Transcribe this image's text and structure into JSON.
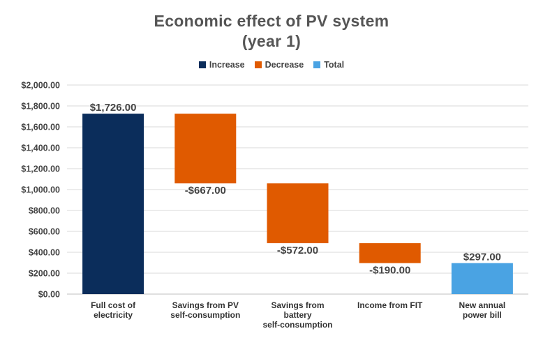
{
  "chart_data": {
    "type": "bar",
    "subtype": "waterfall",
    "title_lines": [
      "Economic effect of PV system",
      "(year 1)"
    ],
    "legend": [
      {
        "key": "increase",
        "label": "Increase",
        "color": "#0b2d5b"
      },
      {
        "key": "decrease",
        "label": "Decrease",
        "color": "#e05a00"
      },
      {
        "key": "total",
        "label": "Total",
        "color": "#4aa3e3"
      }
    ],
    "legend_position": "top",
    "ylim": [
      0,
      2000
    ],
    "y_ticks": [
      {
        "value": 0,
        "label": "$0.00"
      },
      {
        "value": 200,
        "label": "$200.00"
      },
      {
        "value": 400,
        "label": "$400.00"
      },
      {
        "value": 600,
        "label": "$600.00"
      },
      {
        "value": 800,
        "label": "$800.00"
      },
      {
        "value": 1000,
        "label": "$1,000.00"
      },
      {
        "value": 1200,
        "label": "$1,200.00"
      },
      {
        "value": 1400,
        "label": "$1,400.00"
      },
      {
        "value": 1600,
        "label": "$1,600.00"
      },
      {
        "value": 1800,
        "label": "$1,800.00"
      },
      {
        "value": 2000,
        "label": "$2,000.00"
      }
    ],
    "grid": true,
    "bars": [
      {
        "category": [
          "Full cost of",
          "electricity"
        ],
        "kind": "increase",
        "start": 0,
        "end": 1726,
        "label": "$1,726.00"
      },
      {
        "category": [
          "Savings from PV",
          "self-consumption"
        ],
        "kind": "decrease",
        "start": 1726,
        "end": 1059,
        "label": "-$667.00"
      },
      {
        "category": [
          "Savings from",
          "battery",
          "self-consumption"
        ],
        "kind": "decrease",
        "start": 1059,
        "end": 487,
        "label": "-$572.00"
      },
      {
        "category": [
          "Income from FIT"
        ],
        "kind": "decrease",
        "start": 487,
        "end": 297,
        "label": "-$190.00"
      },
      {
        "category": [
          "New annual",
          "power bill"
        ],
        "kind": "total",
        "start": 0,
        "end": 297,
        "label": "$297.00"
      }
    ]
  }
}
